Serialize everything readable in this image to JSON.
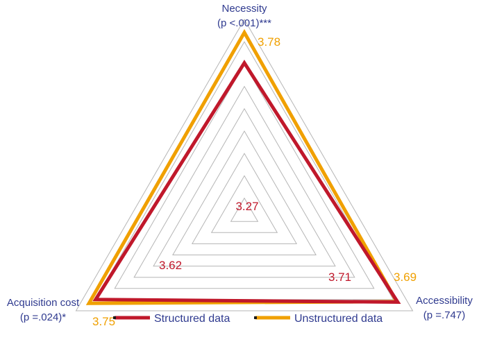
{
  "chart_data": {
    "type": "radar",
    "axes": [
      {
        "name": "Necessity",
        "p_label": "(p <.001)***"
      },
      {
        "name": "Accessibility",
        "p_label": "(p =.747)"
      },
      {
        "name": "Acquisition cost",
        "p_label": "(p =.024)*"
      }
    ],
    "rlim": [
      1,
      4
    ],
    "rings": 9,
    "series": [
      {
        "name": "Structured data",
        "color": "#c0182b",
        "values": [
          3.27,
          3.71,
          3.62
        ],
        "labels": [
          "3.27",
          "3.71",
          "3.62"
        ]
      },
      {
        "name": "Unstructured data",
        "color": "#f0a000",
        "values": [
          3.78,
          3.69,
          3.75
        ],
        "labels": [
          "3.78",
          "3.69",
          "3.75"
        ]
      }
    ],
    "legend_position": "bottom"
  }
}
